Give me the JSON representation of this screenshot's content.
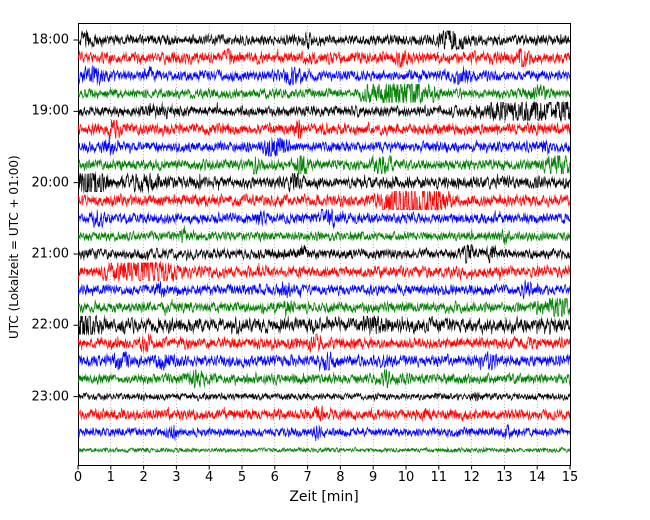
{
  "chart_data": {
    "type": "line",
    "subtype": "seismogram-helicorder",
    "title": "",
    "xlabel": "Zeit  [min]",
    "ylabel": "UTC (Lokalzeit = UTC + 01:00)",
    "x_ticks": [
      "0",
      "1",
      "2",
      "3",
      "4",
      "5",
      "6",
      "7",
      "8",
      "9",
      "10",
      "11",
      "12",
      "13",
      "14",
      "15"
    ],
    "y_ticks": [
      "18:00",
      "19:00",
      "20:00",
      "21:00",
      "22:00",
      "23:00"
    ],
    "x_range_minutes": [
      0,
      15
    ],
    "minutes_per_row": 15,
    "grid": {
      "vertical_per_minute": true,
      "style": "dotted"
    },
    "legend": "none",
    "colors_cycle": [
      "#000000",
      "#ff0000",
      "#0000ff",
      "#008000"
    ],
    "events_format": "[minute, relative_amplitude, sigma_minutes]",
    "seed": 42,
    "rows": [
      {
        "time": "18:00",
        "label": "18:00",
        "color": "#000000",
        "base": 1.0,
        "events": [
          [
            0.3,
            1.3,
            0.15
          ],
          [
            7.0,
            1.2,
            0.1
          ],
          [
            11.4,
            3.2,
            0.22
          ]
        ]
      },
      {
        "time": "18:15",
        "label": "",
        "color": "#ff0000",
        "base": 1.15,
        "events": [
          [
            4.6,
            1.1,
            0.08
          ],
          [
            9.9,
            1.6,
            0.08
          ],
          [
            13.6,
            1.8,
            0.1
          ]
        ]
      },
      {
        "time": "18:30",
        "label": "",
        "color": "#0000ff",
        "base": 1.0,
        "events": [
          [
            0.5,
            1.5,
            0.25
          ],
          [
            2.1,
            1.3,
            0.15
          ],
          [
            6.5,
            1.6,
            0.2
          ],
          [
            11.7,
            1.5,
            0.15
          ]
        ]
      },
      {
        "time": "18:45",
        "label": "",
        "color": "#008000",
        "base": 0.9,
        "events": [
          [
            8.9,
            1.5,
            0.2
          ],
          [
            9.9,
            4.8,
            0.5
          ],
          [
            14.0,
            1.4,
            0.2
          ]
        ]
      },
      {
        "time": "19:00",
        "label": "19:00",
        "color": "#000000",
        "base": 1.0,
        "events": [
          [
            2.5,
            0.8,
            0.3
          ],
          [
            13.7,
            2.2,
            0.9
          ],
          [
            14.8,
            2.0,
            0.15
          ]
        ]
      },
      {
        "time": "19:15",
        "label": "",
        "color": "#ff0000",
        "base": 1.1,
        "events": [
          [
            1.1,
            1.2,
            0.12
          ],
          [
            6.7,
            2.8,
            0.08
          ]
        ]
      },
      {
        "time": "19:30",
        "label": "",
        "color": "#0000ff",
        "base": 1.0,
        "events": [
          [
            0.9,
            1.3,
            0.15
          ],
          [
            5.9,
            2.0,
            0.15
          ],
          [
            6.2,
            1.5,
            0.1
          ],
          [
            14.3,
            1.2,
            0.1
          ]
        ]
      },
      {
        "time": "19:45",
        "label": "",
        "color": "#008000",
        "base": 1.0,
        "events": [
          [
            5.4,
            1.2,
            0.08
          ],
          [
            6.8,
            4.5,
            0.09
          ],
          [
            9.3,
            1.8,
            0.2
          ],
          [
            14.6,
            2.2,
            0.25
          ]
        ]
      },
      {
        "time": "20:00",
        "label": "20:00",
        "color": "#000000",
        "base": 1.2,
        "events": [
          [
            0.35,
            3.2,
            0.3
          ],
          [
            2.0,
            1.0,
            0.3
          ],
          [
            6.6,
            1.3,
            0.12
          ]
        ]
      },
      {
        "time": "20:15",
        "label": "",
        "color": "#ff0000",
        "base": 1.1,
        "events": [
          [
            10.1,
            5.0,
            0.45
          ],
          [
            10.9,
            3.2,
            0.25
          ]
        ]
      },
      {
        "time": "20:30",
        "label": "",
        "color": "#0000ff",
        "base": 1.0,
        "events": [
          [
            0.6,
            1.2,
            0.15
          ],
          [
            5.5,
            1.1,
            0.15
          ],
          [
            7.6,
            1.8,
            0.2
          ]
        ]
      },
      {
        "time": "20:45",
        "label": "",
        "color": "#008000",
        "base": 0.85,
        "events": [
          [
            3.2,
            1.3,
            0.08
          ],
          [
            13.0,
            0.9,
            0.1
          ]
        ]
      },
      {
        "time": "21:00",
        "label": "21:00",
        "color": "#000000",
        "base": 1.0,
        "events": [
          [
            6.9,
            1.3,
            0.08
          ],
          [
            11.9,
            3.0,
            0.08
          ],
          [
            12.6,
            2.0,
            0.08
          ]
        ]
      },
      {
        "time": "21:15",
        "label": "",
        "color": "#ff0000",
        "base": 1.1,
        "events": [
          [
            1.2,
            1.5,
            0.25
          ],
          [
            2.2,
            3.8,
            0.4
          ]
        ]
      },
      {
        "time": "21:30",
        "label": "",
        "color": "#0000ff",
        "base": 1.0,
        "events": [
          [
            2.5,
            1.2,
            0.1
          ],
          [
            6.3,
            1.8,
            0.1
          ],
          [
            13.7,
            1.6,
            0.1
          ]
        ]
      },
      {
        "time": "21:45",
        "label": "",
        "color": "#008000",
        "base": 1.0,
        "events": [
          [
            6.4,
            1.2,
            0.1
          ],
          [
            14.6,
            2.2,
            0.3
          ]
        ]
      },
      {
        "time": "22:00",
        "label": "22:00",
        "color": "#000000",
        "base": 1.5,
        "events": [
          [
            0.15,
            2.2,
            0.25
          ],
          [
            9.0,
            1.0,
            0.2
          ]
        ]
      },
      {
        "time": "22:15",
        "label": "",
        "color": "#ff0000",
        "base": 1.1,
        "events": [
          [
            2.1,
            1.0,
            0.1
          ],
          [
            7.2,
            1.2,
            0.12
          ]
        ]
      },
      {
        "time": "22:30",
        "label": "",
        "color": "#0000ff",
        "base": 1.1,
        "events": [
          [
            1.3,
            1.8,
            0.15
          ],
          [
            2.6,
            1.6,
            0.15
          ],
          [
            7.6,
            1.6,
            0.15
          ],
          [
            12.6,
            1.4,
            0.1
          ]
        ]
      },
      {
        "time": "22:45",
        "label": "",
        "color": "#008000",
        "base": 1.0,
        "events": [
          [
            3.6,
            1.3,
            0.15
          ],
          [
            9.4,
            1.1,
            0.1
          ]
        ]
      },
      {
        "time": "23:00",
        "label": "23:00",
        "color": "#000000",
        "base": 0.65,
        "events": [
          [
            12.1,
            1.2,
            0.08
          ]
        ]
      },
      {
        "time": "23:15",
        "label": "",
        "color": "#ff0000",
        "base": 1.0,
        "events": [
          [
            7.4,
            1.2,
            0.1
          ],
          [
            10.6,
            1.1,
            0.08
          ]
        ]
      },
      {
        "time": "23:30",
        "label": "",
        "color": "#0000ff",
        "base": 0.85,
        "events": [
          [
            2.9,
            1.6,
            0.08
          ],
          [
            7.3,
            1.5,
            0.08
          ],
          [
            13.1,
            1.2,
            0.08
          ]
        ]
      },
      {
        "time": "23:45",
        "label": "",
        "color": "#008000",
        "base": 0.45,
        "events": []
      }
    ]
  }
}
